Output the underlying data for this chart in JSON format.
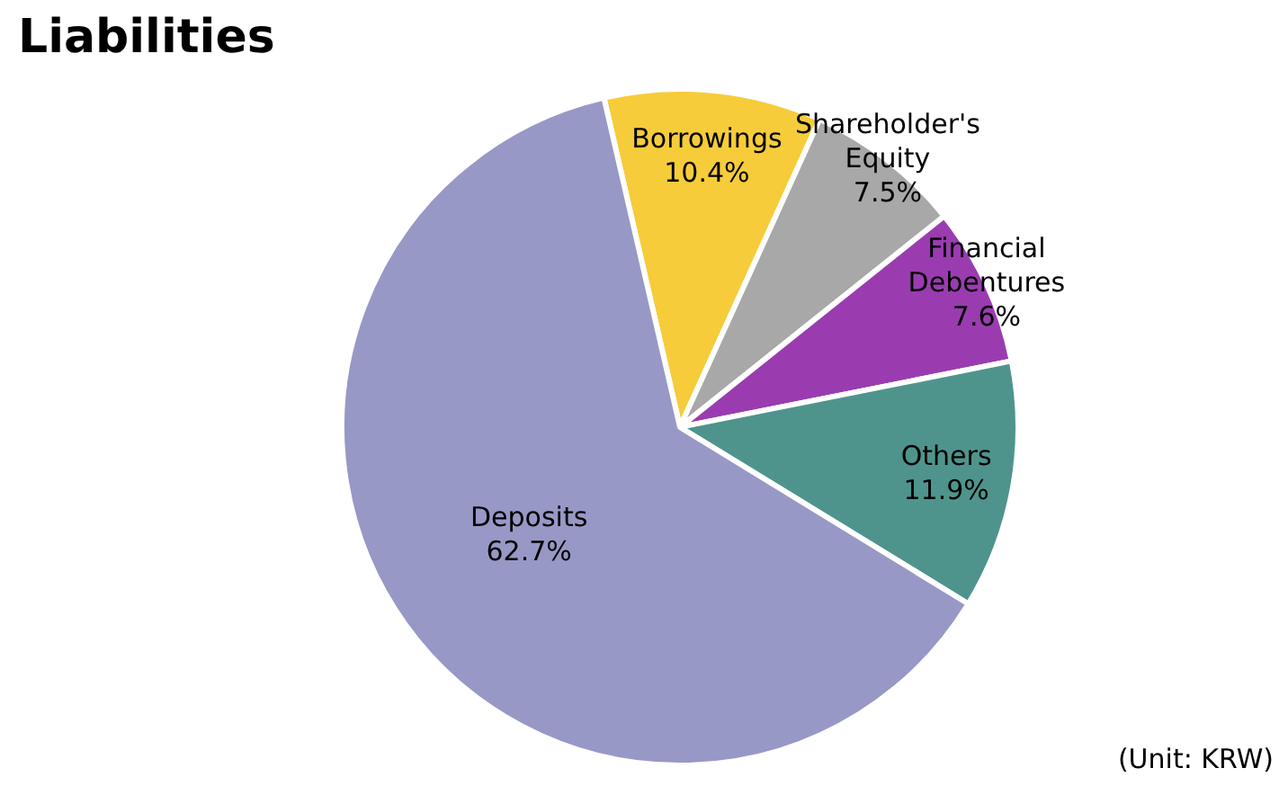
{
  "chart_data": {
    "type": "pie",
    "title": "Liabilities",
    "categories": [
      "Borrowings",
      "Shareholder's Equity",
      "Financial Debentures",
      "Others",
      "Deposits"
    ],
    "values": [
      10.4,
      7.5,
      7.6,
      11.9,
      62.7
    ],
    "value_labels": [
      "10.4%",
      "7.5%",
      "7.6%",
      "11.9%",
      "62.7%"
    ],
    "colors": [
      "#f6cc3a",
      "#a8a8a8",
      "#9a3cb0",
      "#4f948c",
      "#9898c6"
    ],
    "legend": false,
    "annotations": [
      "(Unit: KRW)"
    ]
  }
}
